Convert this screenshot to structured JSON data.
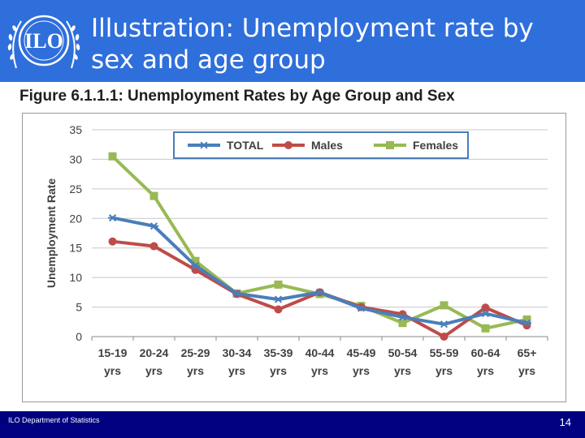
{
  "slide": {
    "title": "Illustration: Unemployment rate by sex and age group",
    "figure_title": "Figure 6.1.1.1: Unemployment Rates by Age Group and Sex",
    "footer_left": "ILO Department of Statistics",
    "page_number": "14",
    "logo_text": "ILO"
  },
  "colors": {
    "header_bg": "#2f6fdc",
    "footer_bg": "#000080",
    "total": "#4a7ebb",
    "males": "#be4b48",
    "females": "#98b954"
  },
  "chart_data": {
    "type": "line",
    "title": "",
    "xlabel": "",
    "ylabel": "Unemployment Rate",
    "ylim": [
      0,
      35
    ],
    "yticks": [
      "0",
      "5",
      "10",
      "15",
      "20",
      "25",
      "30",
      "35"
    ],
    "grid": true,
    "legend_position": "top",
    "categories": [
      "15-19 yrs",
      "20-24 yrs",
      "25-29 yrs",
      "30-34 yrs",
      "35-39 yrs",
      "40-44 yrs",
      "45-49 yrs",
      "50-54 yrs",
      "55-59 yrs",
      "60-64 yrs",
      "65+ yrs"
    ],
    "series": [
      {
        "name": "TOTAL",
        "marker": "star",
        "color": "#4a7ebb",
        "values": [
          20.1,
          18.7,
          12.0,
          7.3,
          6.3,
          7.5,
          4.8,
          3.3,
          2.1,
          3.9,
          2.3
        ]
      },
      {
        "name": "Males",
        "marker": "circle",
        "color": "#be4b48",
        "values": [
          16.1,
          15.3,
          11.3,
          7.2,
          4.6,
          7.5,
          5.0,
          3.8,
          0.0,
          4.9,
          1.9
        ]
      },
      {
        "name": "Females",
        "marker": "square",
        "color": "#98b954",
        "values": [
          30.5,
          23.8,
          12.8,
          7.3,
          8.8,
          7.2,
          5.2,
          2.3,
          5.3,
          1.4,
          2.9
        ]
      }
    ]
  }
}
